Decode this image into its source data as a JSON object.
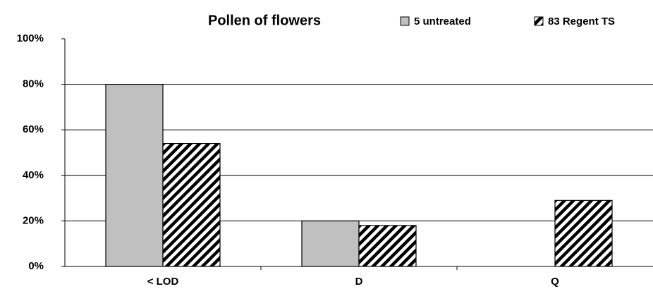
{
  "chart_data": {
    "type": "bar",
    "title": "Pollen of flowers",
    "categories": [
      "< LOD",
      "D",
      "Q"
    ],
    "series": [
      {
        "name": "5 untreated",
        "color": "#c0c0c0",
        "values": [
          80,
          20,
          0
        ]
      },
      {
        "name": "83 Regent TS",
        "color": "hatch",
        "values": [
          54,
          18,
          29
        ]
      }
    ],
    "ylim": [
      0,
      100
    ],
    "yticks": [
      {
        "value": 0,
        "label": "0%"
      },
      {
        "value": 20,
        "label": "20%"
      },
      {
        "value": 40,
        "label": "40%"
      },
      {
        "value": 60,
        "label": "60%"
      },
      {
        "value": 80,
        "label": "80%"
      },
      {
        "value": 100,
        "label": "100%"
      }
    ],
    "grid": true
  }
}
